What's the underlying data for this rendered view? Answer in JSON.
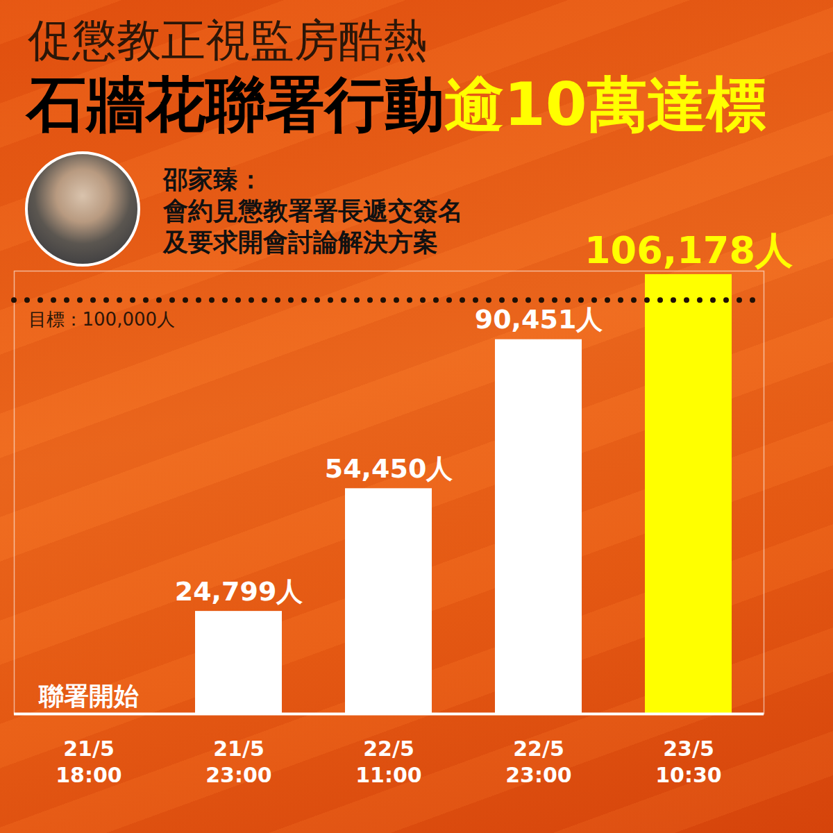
{
  "chart_data": {
    "type": "bar",
    "kicker": "促懲教正視監房酷熱",
    "title": "石牆花聯署行動",
    "title_highlight": "逾10萬達標",
    "quote": {
      "speaker": "邵家臻：",
      "lines": [
        "會約見懲教署署長遞交簽名",
        "及要求開會討論解決方案"
      ]
    },
    "categories": [
      "21/5\n18:00",
      "21/5\n23:00",
      "22/5\n11:00",
      "22/5\n23:00",
      "23/5\n10:30"
    ],
    "values": [
      0,
      24799,
      54450,
      90451,
      106178
    ],
    "value_labels": [
      null,
      "24,799人",
      "54,450人",
      "90,451人",
      "106,178人"
    ],
    "colors": [
      "#ffffff",
      "#ffffff",
      "#ffffff",
      "#ffffff",
      "#ffff00"
    ],
    "data_labels": true,
    "ylim": [
      0,
      107000
    ],
    "tick_labels": "x",
    "annotations": [
      {
        "x": "21/5\n18:00",
        "y": 0,
        "text": "聯署開始"
      },
      {
        "y": 100000,
        "text": "目標：100,000人",
        "line_style": "dotted"
      }
    ]
  }
}
